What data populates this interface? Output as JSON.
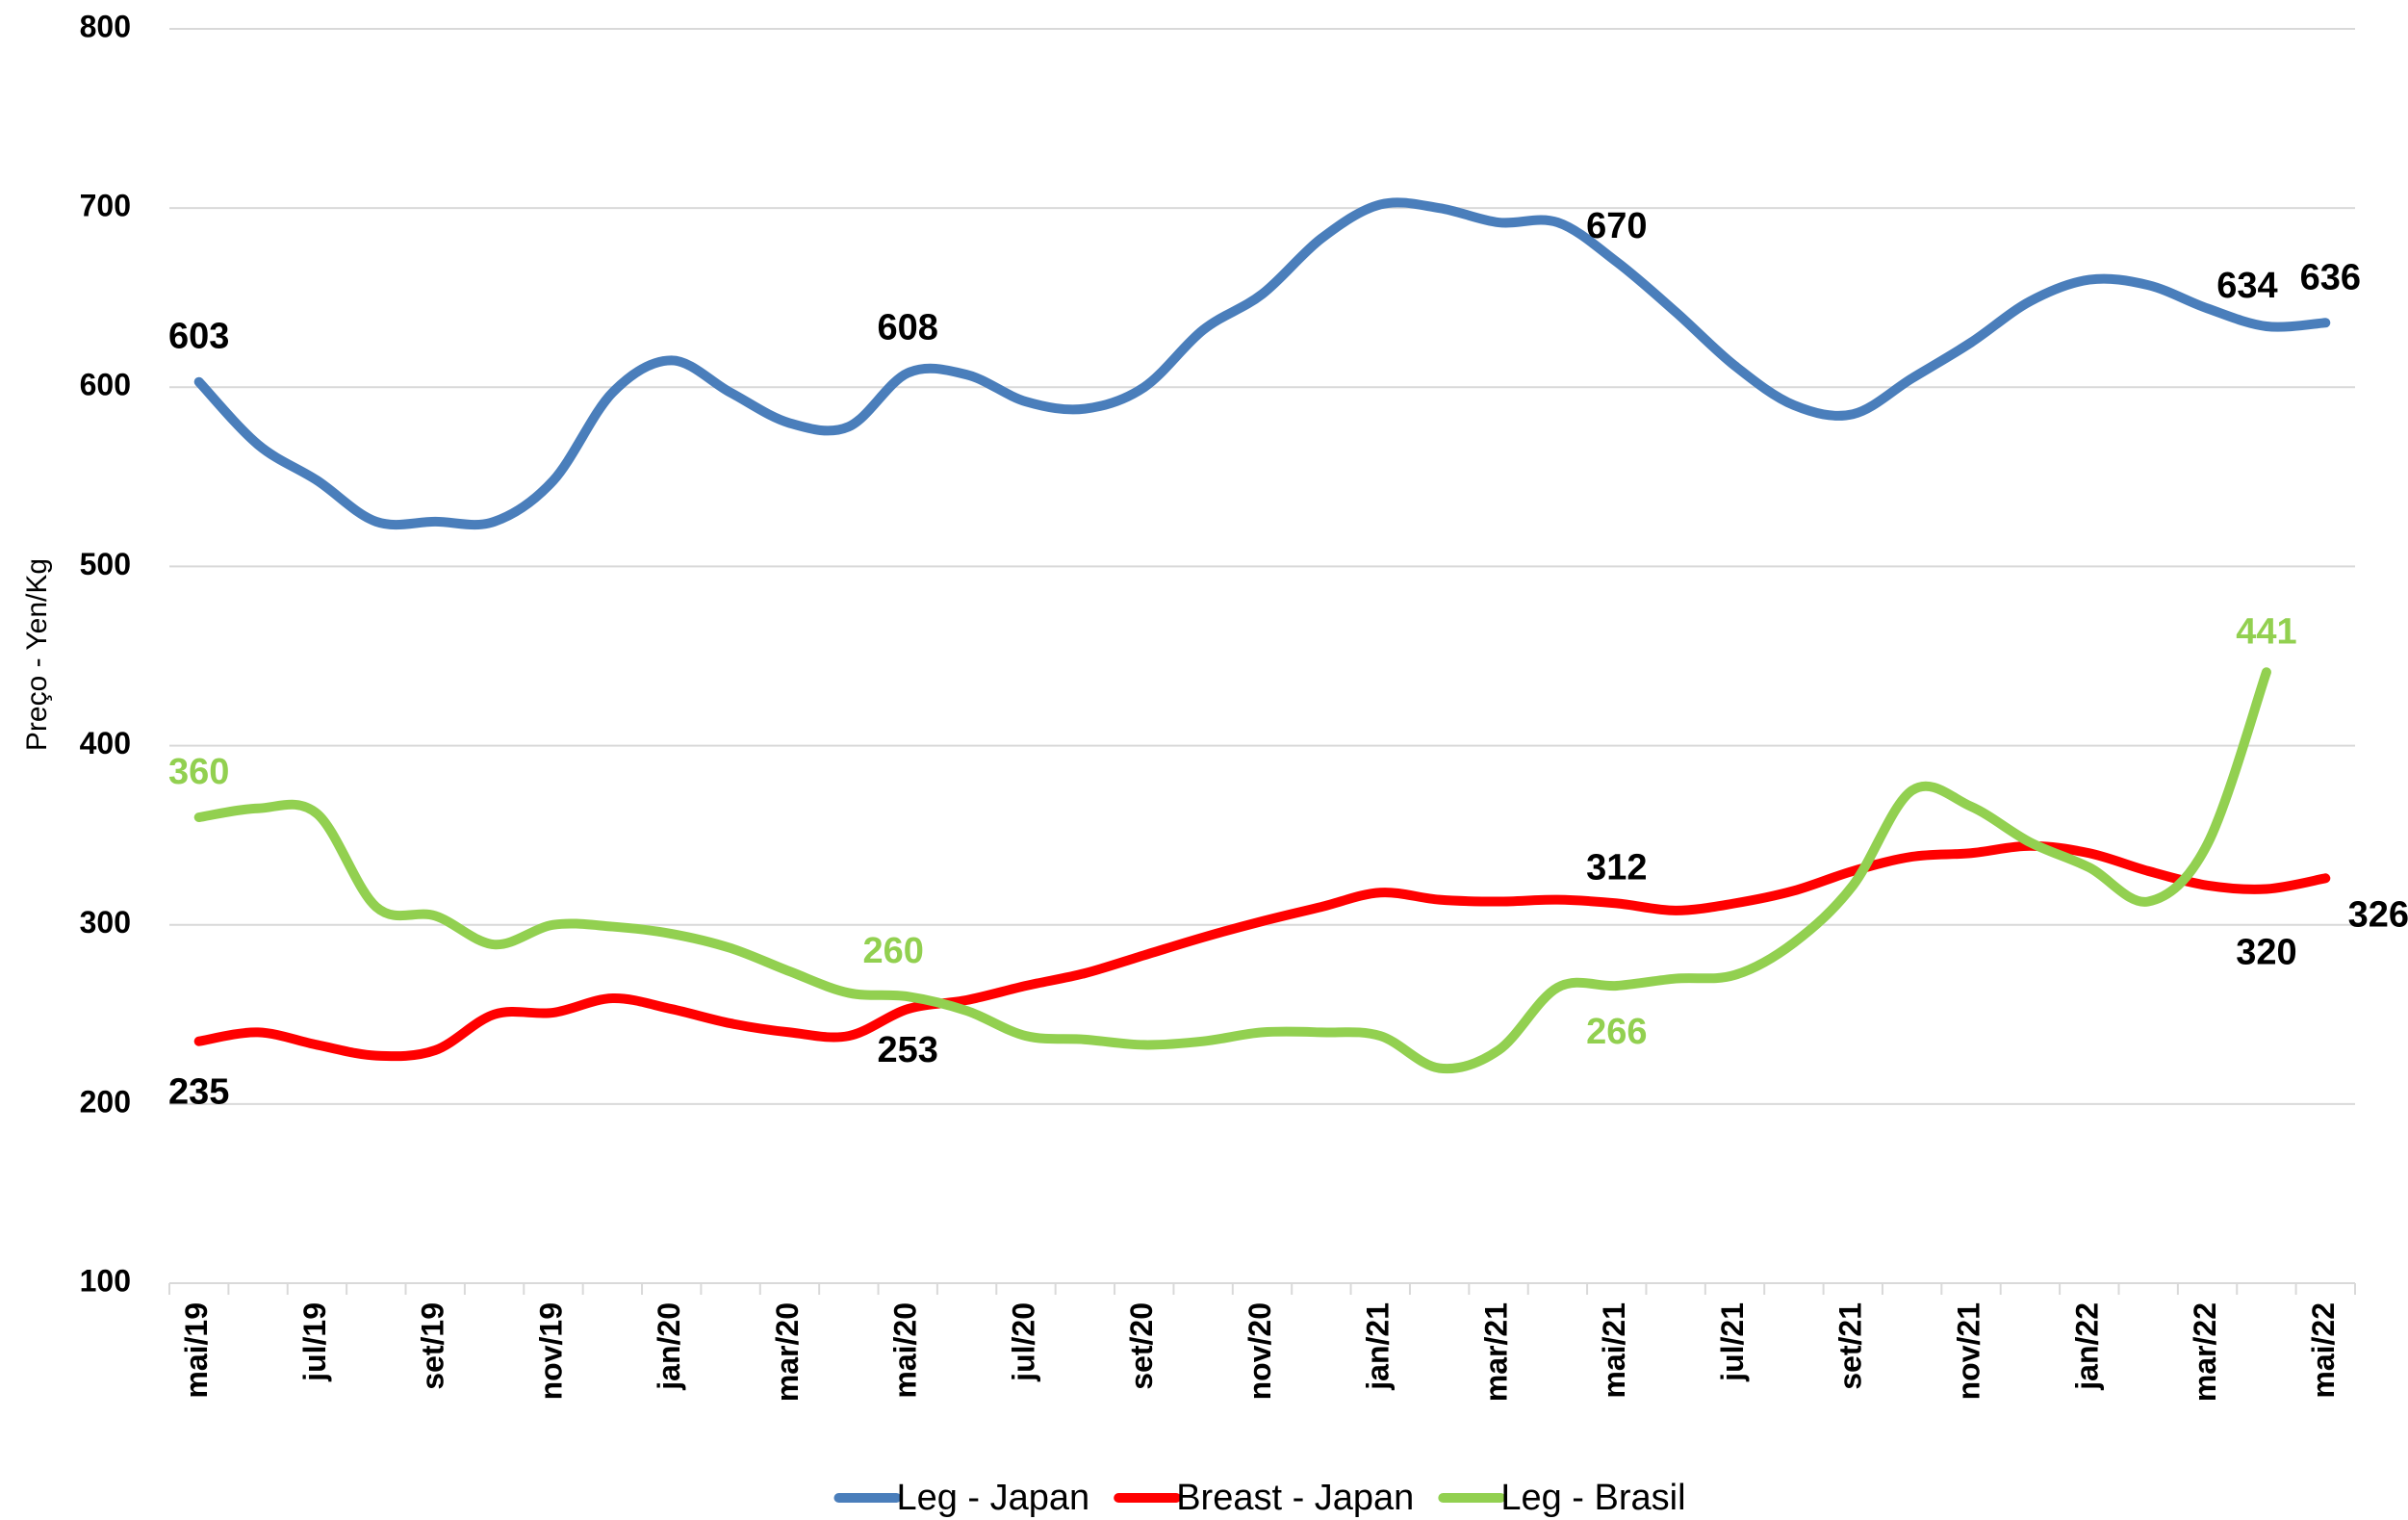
{
  "chart_data": {
    "type": "line",
    "y_label": "Preço - Yen/Kg",
    "categories": [
      "mai/19",
      null,
      "jul/19",
      null,
      "set/19",
      null,
      "nov/19",
      null,
      "jan/20",
      null,
      "mar/20",
      null,
      "mai/20",
      null,
      "jul/20",
      null,
      "set/20",
      null,
      "nov/20",
      null,
      "jan/21",
      null,
      "mar/21",
      null,
      "mai/21",
      null,
      "jul/21",
      null,
      "set/21",
      null,
      "nov/21",
      null,
      "jan/22",
      null,
      "mar/22",
      null,
      "mai/22"
    ],
    "ylim": [
      100,
      800
    ],
    "yticks": [
      100,
      200,
      300,
      400,
      500,
      600,
      700,
      800
    ],
    "grid": true,
    "legend": "bottom",
    "series": [
      {
        "name": "Leg - Japan",
        "color": "#4a7ebb",
        "label_color": "#000000",
        "values": [
          603,
          568,
          548,
          525,
          525,
          525,
          548,
          597,
          615,
          597,
          580,
          578,
          608,
          607,
          592,
          588,
          600,
          632,
          652,
          683,
          702,
          700,
          692,
          692,
          670,
          642,
          612,
          590,
          585,
          605,
          625,
          648,
          660,
          657,
          644,
          634,
          636
        ],
        "value_labels": [
          "603",
          null,
          null,
          null,
          null,
          null,
          null,
          null,
          null,
          null,
          null,
          null,
          "608",
          null,
          null,
          null,
          null,
          null,
          null,
          null,
          null,
          null,
          null,
          null,
          "670",
          null,
          null,
          null,
          null,
          null,
          null,
          null,
          null,
          null,
          null,
          "634",
          "636"
        ]
      },
      {
        "name": "Breast - Japan",
        "color": "#ff0000",
        "label_color": "#000000",
        "values": [
          235,
          240,
          233,
          227,
          230,
          250,
          251,
          259,
          253,
          245,
          240,
          238,
          253,
          258,
          266,
          273,
          283,
          293,
          302,
          310,
          318,
          314,
          313,
          314,
          312,
          308,
          312,
          319,
          330,
          338,
          340,
          344,
          340,
          330,
          322,
          320,
          326
        ],
        "value_labels": [
          "235",
          null,
          null,
          null,
          null,
          null,
          null,
          null,
          null,
          null,
          null,
          null,
          "253",
          null,
          null,
          null,
          null,
          null,
          null,
          null,
          null,
          null,
          null,
          null,
          "312",
          null,
          null,
          null,
          null,
          null,
          null,
          null,
          null,
          null,
          null,
          "320",
          "326"
        ]
      },
      {
        "name": "Leg - Brasil",
        "color": "#92d050",
        "label_color": "#92d050",
        "values": [
          360,
          365,
          362,
          310,
          305,
          289,
          300,
          299,
          295,
          287,
          274,
          262,
          260,
          252,
          238,
          236,
          233,
          235,
          240,
          240,
          238,
          220,
          230,
          265,
          266,
          270,
          272,
          290,
          322,
          375,
          366,
          346,
          332,
          313,
          345,
          441,
          null
        ],
        "value_labels": [
          "360",
          null,
          null,
          null,
          null,
          null,
          null,
          null,
          null,
          null,
          null,
          null,
          "260",
          null,
          null,
          null,
          null,
          null,
          null,
          null,
          null,
          null,
          null,
          null,
          "266",
          null,
          null,
          null,
          null,
          null,
          null,
          null,
          null,
          null,
          null,
          "441",
          null
        ]
      }
    ]
  }
}
